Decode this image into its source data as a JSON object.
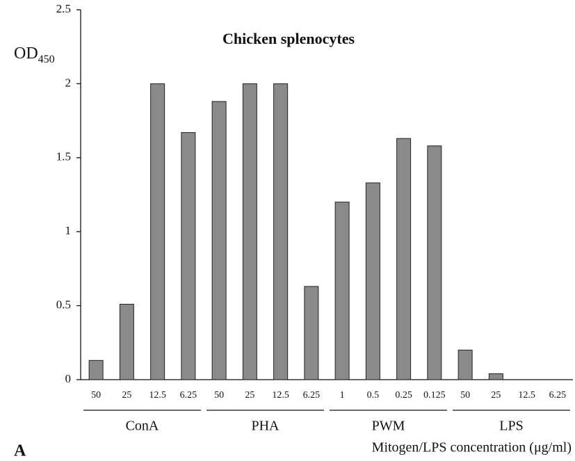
{
  "chart_data": {
    "type": "bar",
    "title": "Chicken splenocytes",
    "y_label": "OD",
    "y_label_sub": "450",
    "x_label": "Mitogen/LPS concentration (μg/ml)",
    "panel": "A",
    "categories": [
      "50",
      "25",
      "12.5",
      "6.25",
      "50",
      "25",
      "12.5",
      "6.25",
      "1",
      "0.5",
      "0.25",
      "0.125",
      "50",
      "25",
      "12.5",
      "6.25"
    ],
    "groups": [
      "ConA",
      "PHA",
      "PWM",
      "LPS"
    ],
    "values": [
      0.13,
      0.51,
      2.0,
      1.67,
      1.88,
      2.0,
      2.0,
      0.63,
      1.2,
      1.33,
      1.63,
      1.58,
      0.2,
      0.04,
      0,
      0
    ],
    "color": "#8a8a8a",
    "ylim": [
      0,
      2.5
    ],
    "yticks": [
      0,
      0.5,
      1,
      1.5,
      2,
      2.5
    ],
    "grid": false
  }
}
